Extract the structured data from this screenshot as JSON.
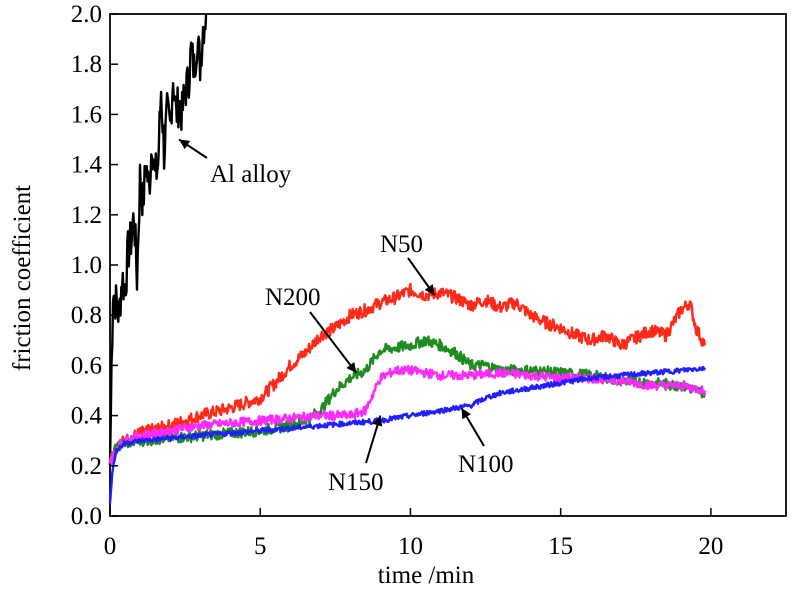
{
  "chart_data": {
    "type": "line",
    "title": "",
    "xlabel": "time /min",
    "ylabel": "friction coefficient",
    "xlim": [
      0,
      22.5
    ],
    "ylim": [
      0,
      2.0
    ],
    "xticks": [
      0,
      5,
      10,
      15,
      20
    ],
    "xtick_labels": [
      "0",
      "5",
      "10",
      "15",
      "20"
    ],
    "yticks": [
      0.0,
      0.2,
      0.4,
      0.6,
      0.8,
      1.0,
      1.2,
      1.4,
      1.6,
      1.8,
      2.0
    ],
    "ytick_labels": [
      "0.0",
      "0.2",
      "0.4",
      "0.6",
      "0.8",
      "1.0",
      "1.2",
      "1.4",
      "1.6",
      "1.8",
      "2.0"
    ],
    "grid": false,
    "legend": "none (series labelled by annotations)",
    "series": [
      {
        "name": "Al alloy",
        "color": "#000000",
        "x": [
          0,
          0.05,
          0.1,
          0.2,
          0.3,
          0.4,
          0.5,
          0.6,
          0.7,
          0.8,
          0.9,
          1.0,
          1.1,
          1.2,
          1.3,
          1.4,
          1.5,
          1.6,
          1.7,
          1.8,
          1.9,
          2.0,
          2.1,
          2.2,
          2.3,
          2.4,
          2.5,
          2.6,
          2.7,
          2.8,
          2.9,
          3.0,
          3.1,
          3.2
        ],
        "y": [
          0.2,
          0.6,
          0.9,
          0.85,
          0.8,
          0.95,
          0.9,
          1.05,
          1.1,
          1.2,
          0.95,
          1.35,
          1.25,
          1.4,
          1.3,
          1.5,
          1.35,
          1.4,
          1.7,
          1.45,
          1.6,
          1.55,
          1.75,
          1.6,
          1.65,
          1.6,
          1.7,
          1.72,
          1.85,
          1.78,
          1.9,
          1.8,
          1.95,
          2.0
        ]
      },
      {
        "name": "N50",
        "color": "#ff2a1a",
        "x": [
          0,
          0.2,
          0.5,
          1,
          2,
          3,
          4,
          5,
          5.5,
          6,
          6.5,
          7,
          7.5,
          8,
          8.5,
          9,
          9.5,
          10,
          10.5,
          11,
          11.5,
          12,
          12.5,
          13,
          13.5,
          14,
          14.5,
          15,
          15.5,
          16,
          16.5,
          17,
          17.5,
          18,
          18.5,
          19,
          19.3,
          19.5,
          19.8
        ],
        "y": [
          0.22,
          0.28,
          0.3,
          0.33,
          0.36,
          0.4,
          0.43,
          0.47,
          0.53,
          0.6,
          0.65,
          0.72,
          0.75,
          0.8,
          0.82,
          0.85,
          0.87,
          0.9,
          0.88,
          0.89,
          0.87,
          0.84,
          0.86,
          0.83,
          0.85,
          0.8,
          0.77,
          0.75,
          0.72,
          0.7,
          0.72,
          0.68,
          0.71,
          0.74,
          0.72,
          0.82,
          0.85,
          0.75,
          0.68
        ]
      },
      {
        "name": "N200",
        "color": "#1e8c1e",
        "x": [
          0,
          0.2,
          0.5,
          1,
          2,
          3,
          4,
          5,
          6,
          6.5,
          7,
          7.5,
          8,
          8.5,
          9,
          9.5,
          10,
          10.5,
          11,
          11.5,
          12,
          12.5,
          13,
          14,
          15,
          16,
          17,
          18,
          19,
          19.8
        ],
        "y": [
          0.21,
          0.27,
          0.29,
          0.3,
          0.31,
          0.32,
          0.33,
          0.34,
          0.36,
          0.38,
          0.42,
          0.5,
          0.55,
          0.58,
          0.66,
          0.67,
          0.68,
          0.7,
          0.68,
          0.65,
          0.6,
          0.6,
          0.58,
          0.58,
          0.57,
          0.56,
          0.54,
          0.53,
          0.52,
          0.49
        ]
      },
      {
        "name": "N150",
        "color": "#ff2aff",
        "x": [
          0,
          0.2,
          0.5,
          1,
          2,
          3,
          4,
          5,
          6,
          7,
          8,
          8.5,
          9,
          9.5,
          10,
          11,
          12,
          13,
          14,
          15,
          16,
          17,
          18,
          19,
          19.8
        ],
        "y": [
          0.21,
          0.27,
          0.3,
          0.32,
          0.34,
          0.36,
          0.37,
          0.38,
          0.39,
          0.4,
          0.4,
          0.42,
          0.55,
          0.58,
          0.58,
          0.56,
          0.56,
          0.57,
          0.56,
          0.55,
          0.55,
          0.54,
          0.52,
          0.52,
          0.5
        ]
      },
      {
        "name": "N100",
        "color": "#1f1fff",
        "x": [
          0,
          0.1,
          0.2,
          0.5,
          1,
          2,
          3,
          4,
          5,
          6,
          7,
          8,
          9,
          10,
          11,
          12,
          12.5,
          13,
          14,
          15,
          16,
          17,
          18,
          19,
          19.8
        ],
        "y": [
          0.05,
          0.2,
          0.26,
          0.29,
          0.3,
          0.31,
          0.32,
          0.33,
          0.34,
          0.35,
          0.36,
          0.37,
          0.38,
          0.4,
          0.42,
          0.44,
          0.47,
          0.49,
          0.51,
          0.53,
          0.55,
          0.56,
          0.57,
          0.58,
          0.59
        ]
      }
    ],
    "annotations": [
      {
        "text": "Al alloy",
        "target_series": "Al alloy",
        "point": [
          2.3,
          1.5
        ]
      },
      {
        "text": "N50",
        "target_series": "N50",
        "point": [
          10.8,
          0.88
        ]
      },
      {
        "text": "N200",
        "target_series": "N200",
        "point": [
          8.2,
          0.57
        ]
      },
      {
        "text": "N150",
        "target_series": "N150",
        "point": [
          9.0,
          0.4
        ]
      },
      {
        "text": "N100",
        "target_series": "N100",
        "point": [
          11.7,
          0.43
        ]
      }
    ]
  }
}
